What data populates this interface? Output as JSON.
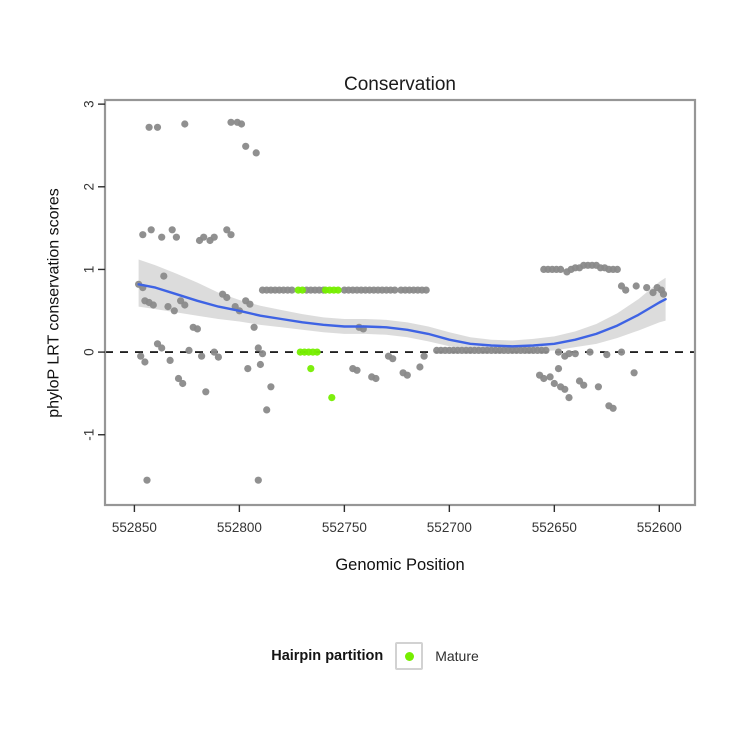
{
  "chart_data": {
    "type": "scatter",
    "title": "Conservation",
    "xlabel": "Genomic Position",
    "ylabel": "phyloP LRT conservation scores",
    "x_reversed": true,
    "xlim": [
      552864,
      552583
    ],
    "ylim": [
      -1.85,
      3.05
    ],
    "x_ticks": [
      552850,
      552800,
      552750,
      552700,
      552650,
      552600
    ],
    "y_ticks": [
      -1,
      0,
      1,
      2,
      3
    ],
    "zero_line_y": 0,
    "grid": "off",
    "legend_position": "bottom",
    "colors": {
      "other": "#8a8a8a",
      "mature": "#76EE00",
      "smooth": "#3E63E4",
      "band": "rgba(140,140,140,0.30)",
      "panel_border": "#969696"
    },
    "legend": {
      "title": "Hairpin partition",
      "items": [
        {
          "label": "Mature",
          "color": "#76EE00"
        }
      ]
    },
    "series": [
      {
        "name": "other",
        "points": [
          [
            552843,
            2.72
          ],
          [
            552839,
            2.72
          ],
          [
            552826,
            2.76
          ],
          [
            552804,
            2.78
          ],
          [
            552801,
            2.78
          ],
          [
            552799,
            2.76
          ],
          [
            552797,
            2.49
          ],
          [
            552792,
            2.41
          ],
          [
            552846,
            1.42
          ],
          [
            552842,
            1.48
          ],
          [
            552837,
            1.39
          ],
          [
            552832,
            1.48
          ],
          [
            552830,
            1.39
          ],
          [
            552819,
            1.35
          ],
          [
            552817,
            1.39
          ],
          [
            552814,
            1.35
          ],
          [
            552812,
            1.39
          ],
          [
            552806,
            1.48
          ],
          [
            552804,
            1.42
          ],
          [
            552848,
            0.82
          ],
          [
            552846,
            0.78
          ],
          [
            552845,
            0.62
          ],
          [
            552843,
            0.6
          ],
          [
            552841,
            0.57
          ],
          [
            552836,
            0.92
          ],
          [
            552834,
            0.55
          ],
          [
            552831,
            0.5
          ],
          [
            552828,
            0.62
          ],
          [
            552826,
            0.57
          ],
          [
            552822,
            0.3
          ],
          [
            552820,
            0.28
          ],
          [
            552847,
            -0.05
          ],
          [
            552845,
            -0.12
          ],
          [
            552839,
            0.1
          ],
          [
            552837,
            0.05
          ],
          [
            552833,
            -0.1
          ],
          [
            552829,
            -0.32
          ],
          [
            552827,
            -0.38
          ],
          [
            552824,
            0.02
          ],
          [
            552818,
            -0.05
          ],
          [
            552816,
            -0.48
          ],
          [
            552812,
            0.0
          ],
          [
            552810,
            -0.06
          ],
          [
            552844,
            -1.55
          ],
          [
            552808,
            0.7
          ],
          [
            552806,
            0.66
          ],
          [
            552802,
            0.55
          ],
          [
            552800,
            0.5
          ],
          [
            552797,
            0.62
          ],
          [
            552795,
            0.58
          ],
          [
            552793,
            0.3
          ],
          [
            552791,
            0.05
          ],
          [
            552789,
            -0.02
          ],
          [
            552790,
            -0.15
          ],
          [
            552787,
            -0.7
          ],
          [
            552791,
            -1.55
          ],
          [
            552785,
            -0.42
          ],
          [
            552796,
            -0.2
          ],
          [
            552789,
            0.75
          ],
          [
            552787,
            0.75
          ],
          [
            552785,
            0.75
          ],
          [
            552783,
            0.75
          ],
          [
            552781,
            0.75
          ],
          [
            552779,
            0.75
          ],
          [
            552777,
            0.75
          ],
          [
            552775,
            0.75
          ],
          [
            552768,
            0.75
          ],
          [
            552766,
            0.75
          ],
          [
            552764,
            0.75
          ],
          [
            552762,
            0.75
          ],
          [
            552760,
            0.75
          ],
          [
            552750,
            0.75
          ],
          [
            552748,
            0.75
          ],
          [
            552746,
            0.75
          ],
          [
            552744,
            0.75
          ],
          [
            552742,
            0.75
          ],
          [
            552740,
            0.75
          ],
          [
            552738,
            0.75
          ],
          [
            552736,
            0.75
          ],
          [
            552734,
            0.75
          ],
          [
            552732,
            0.75
          ],
          [
            552730,
            0.75
          ],
          [
            552728,
            0.75
          ],
          [
            552726,
            0.75
          ],
          [
            552723,
            0.75
          ],
          [
            552721,
            0.75
          ],
          [
            552719,
            0.75
          ],
          [
            552717,
            0.75
          ],
          [
            552715,
            0.75
          ],
          [
            552713,
            0.75
          ],
          [
            552711,
            0.75
          ],
          [
            552743,
            0.3
          ],
          [
            552741,
            0.28
          ],
          [
            552746,
            -0.2
          ],
          [
            552744,
            -0.22
          ],
          [
            552737,
            -0.3
          ],
          [
            552735,
            -0.32
          ],
          [
            552729,
            -0.05
          ],
          [
            552727,
            -0.08
          ],
          [
            552722,
            -0.25
          ],
          [
            552720,
            -0.28
          ],
          [
            552714,
            -0.18
          ],
          [
            552712,
            -0.05
          ],
          [
            552706,
            0.02
          ],
          [
            552704,
            0.02
          ],
          [
            552702,
            0.02
          ],
          [
            552700,
            0.02
          ],
          [
            552698,
            0.02
          ],
          [
            552696,
            0.02
          ],
          [
            552694,
            0.02
          ],
          [
            552692,
            0.02
          ],
          [
            552690,
            0.02
          ],
          [
            552688,
            0.02
          ],
          [
            552686,
            0.02
          ],
          [
            552684,
            0.02
          ],
          [
            552682,
            0.02
          ],
          [
            552680,
            0.02
          ],
          [
            552678,
            0.02
          ],
          [
            552676,
            0.02
          ],
          [
            552674,
            0.02
          ],
          [
            552672,
            0.02
          ],
          [
            552670,
            0.02
          ],
          [
            552668,
            0.02
          ],
          [
            552666,
            0.02
          ],
          [
            552664,
            0.02
          ],
          [
            552662,
            0.02
          ],
          [
            552660,
            0.02
          ],
          [
            552658,
            0.02
          ],
          [
            552656,
            0.02
          ],
          [
            552654,
            0.02
          ],
          [
            552648,
            0.0
          ],
          [
            552640,
            -0.02
          ],
          [
            552633,
            0.0
          ],
          [
            552625,
            -0.03
          ],
          [
            552618,
            0.0
          ],
          [
            552655,
            1.0
          ],
          [
            552653,
            1.0
          ],
          [
            552651,
            1.0
          ],
          [
            552649,
            1.0
          ],
          [
            552647,
            1.0
          ],
          [
            552644,
            0.97
          ],
          [
            552642,
            1.0
          ],
          [
            552640,
            1.02
          ],
          [
            552638,
            1.02
          ],
          [
            552636,
            1.05
          ],
          [
            552634,
            1.05
          ],
          [
            552632,
            1.05
          ],
          [
            552630,
            1.05
          ],
          [
            552628,
            1.02
          ],
          [
            552626,
            1.02
          ],
          [
            552624,
            1.0
          ],
          [
            552622,
            1.0
          ],
          [
            552620,
            1.0
          ],
          [
            552618,
            0.8
          ],
          [
            552616,
            0.75
          ],
          [
            552611,
            0.8
          ],
          [
            552606,
            0.78
          ],
          [
            552603,
            0.72
          ],
          [
            552601,
            0.78
          ],
          [
            552599,
            0.75
          ],
          [
            552598,
            0.7
          ],
          [
            552657,
            -0.28
          ],
          [
            552655,
            -0.32
          ],
          [
            552652,
            -0.3
          ],
          [
            552650,
            -0.38
          ],
          [
            552648,
            -0.2
          ],
          [
            552647,
            -0.42
          ],
          [
            552645,
            -0.45
          ],
          [
            552643,
            -0.55
          ],
          [
            552638,
            -0.35
          ],
          [
            552636,
            -0.4
          ],
          [
            552629,
            -0.42
          ],
          [
            552624,
            -0.65
          ],
          [
            552622,
            -0.68
          ],
          [
            552612,
            -0.25
          ],
          [
            552645,
            -0.05
          ],
          [
            552643,
            -0.02
          ]
        ]
      },
      {
        "name": "mature",
        "points": [
          [
            552772,
            0.75
          ],
          [
            552770,
            0.75
          ],
          [
            552759,
            0.75
          ],
          [
            552757,
            0.75
          ],
          [
            552755,
            0.75
          ],
          [
            552753,
            0.75
          ],
          [
            552771,
            0.0
          ],
          [
            552769,
            0.0
          ],
          [
            552767,
            0.0
          ],
          [
            552765,
            0.0
          ],
          [
            552763,
            0.0
          ],
          [
            552766,
            -0.2
          ],
          [
            552756,
            -0.55
          ]
        ]
      }
    ],
    "smooth": {
      "x": [
        552848,
        552840,
        552830,
        552820,
        552810,
        552800,
        552790,
        552780,
        552770,
        552760,
        552750,
        552740,
        552730,
        552720,
        552710,
        552700,
        552690,
        552680,
        552670,
        552660,
        552650,
        552640,
        552630,
        552620,
        552610,
        552600,
        552597
      ],
      "y": [
        0.82,
        0.78,
        0.7,
        0.62,
        0.55,
        0.5,
        0.44,
        0.4,
        0.36,
        0.33,
        0.31,
        0.31,
        0.3,
        0.27,
        0.22,
        0.15,
        0.1,
        0.08,
        0.07,
        0.08,
        0.1,
        0.15,
        0.22,
        0.32,
        0.45,
        0.6,
        0.64
      ],
      "lo": [
        0.55,
        0.52,
        0.48,
        0.44,
        0.4,
        0.37,
        0.33,
        0.3,
        0.27,
        0.24,
        0.22,
        0.22,
        0.21,
        0.18,
        0.13,
        0.07,
        0.03,
        0.01,
        0.0,
        0.01,
        0.02,
        0.06,
        0.1,
        0.17,
        0.26,
        0.36,
        0.38
      ],
      "hi": [
        1.12,
        1.05,
        0.95,
        0.84,
        0.72,
        0.63,
        0.56,
        0.51,
        0.46,
        0.42,
        0.4,
        0.4,
        0.39,
        0.36,
        0.31,
        0.24,
        0.18,
        0.15,
        0.14,
        0.16,
        0.19,
        0.25,
        0.34,
        0.47,
        0.64,
        0.85,
        0.9
      ]
    }
  }
}
